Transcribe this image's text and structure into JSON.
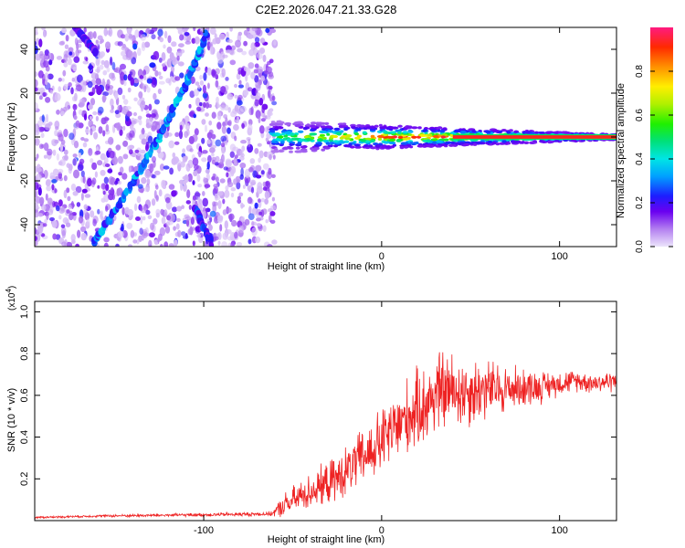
{
  "title": "C2E2.2026.047.21.33.G28",
  "chart_data": [
    {
      "type": "heatmap",
      "name": "spectrogram",
      "xlabel": "Height of straight line (km)",
      "ylabel": "Frequency (Hz)",
      "xlim": [
        -195,
        132
      ],
      "ylim": [
        -50,
        50
      ],
      "xticks": [
        -100,
        0,
        100
      ],
      "xtick_labels": [
        "-100",
        "0",
        "100"
      ],
      "yticks": [
        -40,
        -20,
        0,
        20,
        40
      ],
      "ytick_labels": [
        "-40",
        "-20",
        "0",
        "20",
        "40"
      ],
      "grid": false,
      "features": [
        {
          "label": "broadband noise region",
          "x_range": [
            -195,
            -60
          ],
          "y_range": [
            -50,
            50
          ],
          "amplitude": 0.12
        },
        {
          "label": "main diagonal streak",
          "x": [
            -162,
            -142,
            -125,
            -110,
            -98
          ],
          "y": [
            -48,
            -24,
            0,
            24,
            48
          ],
          "amplitude": 0.28
        },
        {
          "label": "secondary streak",
          "x": [
            -105,
            -95
          ],
          "y": [
            -32,
            -50
          ],
          "amplitude": 0.2
        },
        {
          "label": "upper-left streak",
          "x": [
            -172,
            -160
          ],
          "y": [
            50,
            38
          ],
          "amplitude": 0.18
        },
        {
          "label": "carrier line",
          "x_range": [
            -62,
            132
          ],
          "y": 0,
          "amplitude": 0.95
        }
      ],
      "colorbar": {
        "label": "Normalized spectral amplitude",
        "range": [
          0,
          1
        ],
        "ticks": [
          0.0,
          0.2,
          0.4,
          0.6,
          0.8
        ],
        "tick_labels": [
          "0.0",
          "0.2",
          "0.4",
          "0.6",
          "0.8"
        ]
      }
    },
    {
      "type": "line",
      "name": "snr",
      "xlabel": "Height of straight line (km)",
      "ylabel": "SNR (10 * v/v)",
      "scale_label_base": "(x10",
      "scale_label_exp": "4",
      "scale_label_end": ")",
      "xlim": [
        -195,
        132
      ],
      "ylim": [
        0,
        1.05
      ],
      "xticks": [
        -100,
        0,
        100
      ],
      "xtick_labels": [
        "-100",
        "0",
        "100"
      ],
      "yticks": [
        0.2,
        0.4,
        0.6,
        0.8,
        1.0
      ],
      "ytick_labels": [
        "0.2",
        "0.4",
        "0.6",
        "0.8",
        "1.0"
      ],
      "grid": false,
      "series": [
        {
          "name": "SNR",
          "color": "#ee2222",
          "x": [
            -195,
            -180,
            -160,
            -140,
            -120,
            -100,
            -80,
            -62,
            -55,
            -45,
            -35,
            -25,
            -15,
            -5,
            5,
            15,
            25,
            32,
            40,
            50,
            60,
            70,
            80,
            90,
            100,
            110,
            120,
            132
          ],
          "y": [
            0.015,
            0.018,
            0.022,
            0.024,
            0.026,
            0.028,
            0.03,
            0.032,
            0.07,
            0.12,
            0.16,
            0.2,
            0.27,
            0.34,
            0.42,
            0.5,
            0.56,
            0.62,
            0.62,
            0.62,
            0.63,
            0.63,
            0.64,
            0.64,
            0.66,
            0.67,
            0.66,
            0.67
          ],
          "noise_amplitude": [
            0.006,
            0.006,
            0.007,
            0.008,
            0.009,
            0.01,
            0.011,
            0.012,
            0.07,
            0.09,
            0.11,
            0.13,
            0.15,
            0.18,
            0.2,
            0.22,
            0.23,
            0.24,
            0.22,
            0.2,
            0.17,
            0.14,
            0.11,
            0.09,
            0.07,
            0.06,
            0.06,
            0.06
          ]
        }
      ]
    }
  ]
}
